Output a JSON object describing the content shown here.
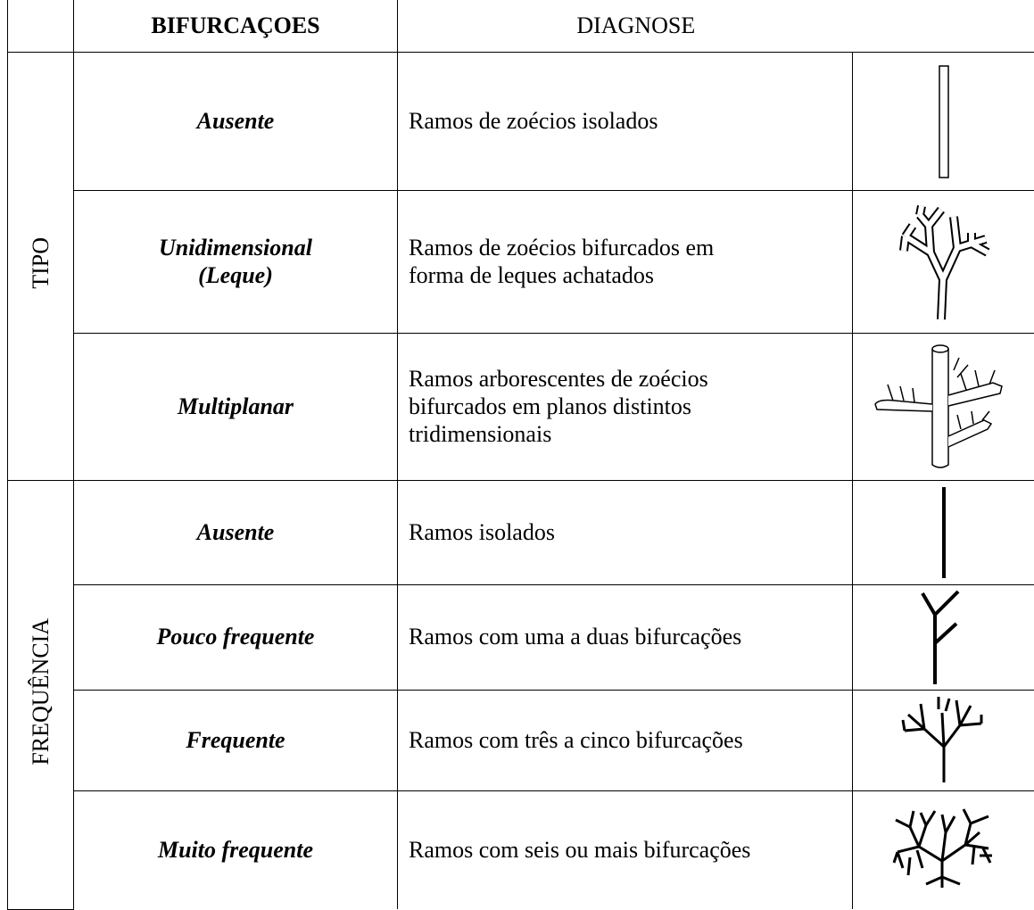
{
  "table": {
    "header": {
      "bifurcation": "BIFURCAÇOES",
      "diagnosis": "DIAGNOSE"
    },
    "groups": [
      {
        "label": "TIPO",
        "rows": [
          {
            "bifurcation": "Ausente",
            "diagnosis": "Ramos de zoécios isolados"
          },
          {
            "bifurcation": "Unidimensional\n(Leque)",
            "diagnosis": "Ramos de zoécios bifurcados em\nforma de leques achatados"
          },
          {
            "bifurcation": "Multiplanar",
            "diagnosis": "Ramos arborescentes de zoécios\nbifurcados em planos distintos\ntridimensionais"
          }
        ]
      },
      {
        "label": "FREQUÊNCIA",
        "rows": [
          {
            "bifurcation": "Ausente",
            "diagnosis": "Ramos isolados"
          },
          {
            "bifurcation": "Pouco frequente",
            "diagnosis": "Ramos com uma a duas bifurcações"
          },
          {
            "bifurcation": "Frequente",
            "diagnosis": "Ramos com três a cinco bifurcações"
          },
          {
            "bifurcation": "Muito frequente",
            "diagnosis": "Ramos com seis ou mais bifurcações"
          }
        ]
      }
    ]
  }
}
